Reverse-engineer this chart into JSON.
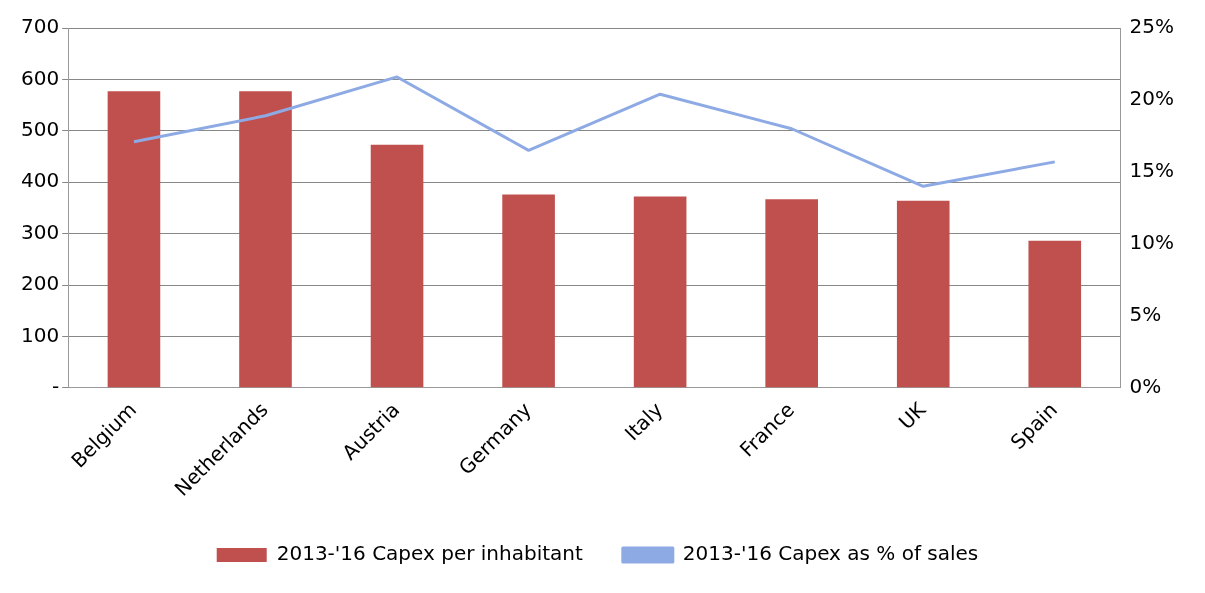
{
  "chart_data": {
    "type": "bar",
    "categories": [
      "Belgium",
      "Netherlands",
      "Austria",
      "Germany",
      "Italy",
      "France",
      "UK",
      "Spain"
    ],
    "series": [
      {
        "name": "2013-'16 Capex per inhabitant",
        "color": "#c0504d",
        "values": [
          577,
          577,
          473,
          376,
          372,
          367,
          364,
          286
        ]
      },
      {
        "name": "2013-'16 Capex as % of sales",
        "type": "line",
        "axis": "y2",
        "color": "#8eaae4",
        "values": [
          17.1,
          18.9,
          21.6,
          16.5,
          20.4,
          18.0,
          14.0,
          15.7
        ]
      }
    ],
    "ylim": [
      0,
      700
    ],
    "yticks": [
      {
        "value": 0,
        "label": "-"
      },
      100,
      200,
      300,
      400,
      500,
      600,
      700
    ],
    "y2lim": [
      0,
      25
    ],
    "y2ticks": [
      {
        "value": 0,
        "label": "0%"
      },
      {
        "value": 5,
        "label": "5%"
      },
      {
        "value": 10,
        "label": "10%"
      },
      {
        "value": 15,
        "label": "15%"
      },
      {
        "value": 20,
        "label": "20%"
      },
      {
        "value": 25,
        "label": "25%"
      }
    ],
    "grid": "y",
    "legend": "bottom",
    "marker": "none"
  }
}
